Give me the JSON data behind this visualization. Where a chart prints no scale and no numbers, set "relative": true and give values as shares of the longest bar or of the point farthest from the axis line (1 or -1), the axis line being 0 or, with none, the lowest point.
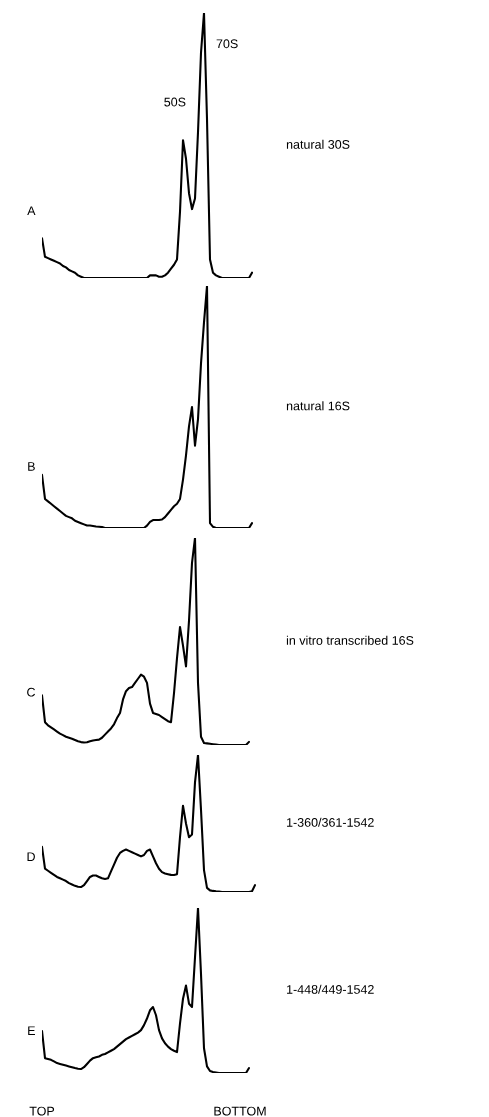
{
  "chart_data": [
    {
      "type": "line",
      "title": "A",
      "relative": true,
      "tick_labels": false,
      "annotations": [
        "70S",
        "50S"
      ],
      "categories": [
        null,
        null,
        null,
        null,
        null,
        null,
        null,
        null,
        null,
        null,
        null,
        null,
        null,
        null,
        null,
        null,
        null,
        null,
        null,
        null,
        null,
        null,
        null,
        null,
        null,
        null,
        null,
        null,
        null,
        null,
        null,
        null,
        null,
        null,
        null,
        null,
        null,
        null,
        null,
        null,
        null,
        null,
        null,
        null,
        null,
        null,
        null,
        null,
        null,
        null,
        null,
        null,
        null,
        null,
        null,
        null,
        null,
        null,
        null,
        null,
        null,
        null,
        null,
        null,
        null,
        null,
        null,
        null,
        null,
        null,
        null,
        null,
        null
      ],
      "series": [
        {
          "name": "natural 30S",
          "color": "#000000",
          "values": [
            0.15,
            0.08,
            0.075,
            0.07,
            0.065,
            0.06,
            0.055,
            0.045,
            0.04,
            0.03,
            0.025,
            0.02,
            0.01,
            0.005,
            0,
            0,
            0,
            0,
            0,
            0,
            0,
            0,
            0,
            0,
            0,
            0,
            0,
            0,
            0,
            0,
            0,
            0,
            0,
            0,
            0,
            0,
            0.01,
            0.01,
            0.01,
            0.005,
            0.005,
            0.01,
            0.02,
            0.035,
            0.05,
            0.07,
            0.25,
            0.52,
            0.45,
            0.32,
            0.26,
            0.3,
            0.55,
            0.85,
            1,
            0.6,
            0.07,
            0.02,
            0.01,
            0.005,
            0,
            0,
            0,
            0,
            0,
            0,
            0,
            0,
            0,
            0,
            0.02,
            null,
            null
          ]
        }
      ]
    },
    {
      "type": "line",
      "title": "B",
      "relative": true,
      "tick_labels": false,
      "categories": [
        null,
        null,
        null,
        null,
        null,
        null,
        null,
        null,
        null,
        null,
        null,
        null,
        null,
        null,
        null,
        null,
        null,
        null,
        null,
        null,
        null,
        null,
        null,
        null,
        null,
        null,
        null,
        null,
        null,
        null,
        null,
        null,
        null,
        null,
        null,
        null,
        null,
        null,
        null,
        null,
        null,
        null,
        null,
        null,
        null,
        null,
        null,
        null,
        null,
        null,
        null,
        null,
        null,
        null,
        null,
        null,
        null,
        null,
        null,
        null,
        null,
        null,
        null,
        null,
        null,
        null,
        null,
        null,
        null,
        null,
        null,
        null,
        null
      ],
      "series": [
        {
          "name": "natural 16S",
          "color": "#000000",
          "values": [
            0.22,
            0.12,
            0.11,
            0.1,
            0.09,
            0.08,
            0.07,
            0.06,
            0.05,
            0.045,
            0.04,
            0.03,
            0.025,
            0.02,
            0.015,
            0.01,
            0.01,
            0.008,
            0.006,
            0.005,
            0.004,
            0,
            0,
            0,
            0,
            0,
            0,
            0,
            0,
            0,
            0,
            0,
            0,
            0,
            0,
            0.01,
            0.025,
            0.033,
            0.033,
            0.033,
            0.035,
            0.045,
            0.06,
            0.075,
            0.09,
            0.1,
            0.12,
            0.2,
            0.3,
            0.42,
            0.5,
            0.34,
            0.45,
            0.68,
            0.85,
            1,
            0.02,
            0.005,
            0,
            0,
            0,
            0,
            0,
            0,
            0,
            0,
            0,
            0,
            0,
            0,
            0.02,
            null,
            null
          ]
        }
      ]
    },
    {
      "type": "line",
      "title": "C",
      "relative": true,
      "tick_labels": false,
      "categories": [
        null,
        null,
        null,
        null,
        null,
        null,
        null,
        null,
        null,
        null,
        null,
        null,
        null,
        null,
        null,
        null,
        null,
        null,
        null,
        null,
        null,
        null,
        null,
        null,
        null,
        null,
        null,
        null,
        null,
        null,
        null,
        null,
        null,
        null,
        null,
        null,
        null,
        null,
        null,
        null,
        null,
        null,
        null,
        null,
        null,
        null,
        null,
        null,
        null,
        null,
        null,
        null,
        null,
        null,
        null,
        null,
        null,
        null,
        null,
        null,
        null,
        null,
        null,
        null,
        null,
        null,
        null,
        null,
        null,
        null,
        null,
        null,
        null
      ],
      "series": [
        {
          "name": "in vitro transcribed 16S",
          "color": "#000000",
          "values": [
            0.24,
            0.11,
            0.095,
            0.085,
            0.075,
            0.065,
            0.055,
            0.048,
            0.04,
            0.035,
            0.03,
            0.024,
            0.018,
            0.014,
            0.012,
            0.013,
            0.018,
            0.022,
            0.024,
            0.026,
            0.035,
            0.05,
            0.065,
            0.08,
            0.1,
            0.13,
            0.155,
            0.22,
            0.26,
            0.275,
            0.28,
            0.3,
            0.32,
            0.34,
            0.33,
            0.3,
            0.2,
            0.155,
            0.15,
            0.145,
            0.135,
            0.125,
            0.115,
            0.11,
            0.25,
            0.42,
            0.57,
            0.48,
            0.38,
            0.6,
            0.88,
            1,
            0.3,
            0.04,
            0.01,
            0.008,
            0.006,
            0.004,
            0.002,
            0,
            0,
            0,
            0,
            0,
            0,
            0,
            0,
            0,
            0,
            0.015,
            null,
            null,
            null
          ]
        }
      ]
    },
    {
      "type": "line",
      "title": "D",
      "relative": true,
      "tick_labels": false,
      "categories": [
        null,
        null,
        null,
        null,
        null,
        null,
        null,
        null,
        null,
        null,
        null,
        null,
        null,
        null,
        null,
        null,
        null,
        null,
        null,
        null,
        null,
        null,
        null,
        null,
        null,
        null,
        null,
        null,
        null,
        null,
        null,
        null,
        null,
        null,
        null,
        null,
        null,
        null,
        null,
        null,
        null,
        null,
        null,
        null,
        null,
        null,
        null,
        null,
        null,
        null,
        null,
        null,
        null,
        null,
        null,
        null,
        null,
        null,
        null,
        null,
        null,
        null,
        null,
        null,
        null,
        null,
        null,
        null,
        null,
        null,
        null,
        null,
        null
      ],
      "series": [
        {
          "name": "1-360/361-1542",
          "color": "#000000",
          "values": [
            0.33,
            0.17,
            0.155,
            0.14,
            0.125,
            0.11,
            0.1,
            0.09,
            0.08,
            0.065,
            0.055,
            0.045,
            0.038,
            0.036,
            0.05,
            0.08,
            0.11,
            0.12,
            0.12,
            0.11,
            0.1,
            0.095,
            0.1,
            0.15,
            0.2,
            0.25,
            0.285,
            0.3,
            0.31,
            0.3,
            0.29,
            0.28,
            0.27,
            0.26,
            0.27,
            0.3,
            0.31,
            0.26,
            0.21,
            0.17,
            0.145,
            0.135,
            0.13,
            0.125,
            0.124,
            0.13,
            0.4,
            0.63,
            0.5,
            0.4,
            0.42,
            0.8,
            1,
            0.6,
            0.16,
            0.03,
            0.012,
            0.008,
            0.005,
            0.003,
            0,
            0,
            0,
            0,
            0,
            0,
            0,
            0,
            0,
            0,
            0.005,
            0.05,
            null
          ]
        }
      ]
    },
    {
      "type": "line",
      "title": "E",
      "relative": true,
      "tick_labels": "x",
      "categories": [
        "TOP",
        null,
        null,
        null,
        null,
        null,
        null,
        null,
        null,
        null,
        null,
        null,
        null,
        null,
        null,
        null,
        null,
        null,
        null,
        null,
        null,
        null,
        null,
        null,
        null,
        null,
        null,
        null,
        null,
        null,
        null,
        null,
        null,
        null,
        null,
        null,
        null,
        null,
        null,
        null,
        null,
        null,
        null,
        null,
        null,
        null,
        null,
        null,
        null,
        null,
        null,
        null,
        null,
        null,
        null,
        null,
        null,
        null,
        null,
        null,
        null,
        null,
        null,
        null,
        null,
        null,
        "BOTTOM",
        null,
        null,
        null,
        null,
        null,
        null
      ],
      "series": [
        {
          "name": "1-448/449-1542",
          "color": "#000000",
          "values": [
            0.255,
            0.09,
            0.085,
            0.08,
            0.07,
            0.06,
            0.055,
            0.05,
            0.045,
            0.04,
            0.035,
            0.03,
            0.026,
            0.024,
            0.035,
            0.055,
            0.075,
            0.09,
            0.095,
            0.1,
            0.11,
            0.115,
            0.125,
            0.135,
            0.145,
            0.16,
            0.175,
            0.19,
            0.205,
            0.215,
            0.225,
            0.235,
            0.245,
            0.26,
            0.29,
            0.33,
            0.38,
            0.4,
            0.35,
            0.26,
            0.21,
            0.18,
            0.16,
            0.145,
            0.135,
            0.127,
            0.3,
            0.45,
            0.53,
            0.42,
            0.4,
            0.7,
            1,
            0.6,
            0.15,
            0.04,
            0.012,
            0.006,
            0.003,
            0,
            0,
            0,
            0,
            0,
            0,
            0,
            0,
            0,
            0,
            0.03,
            null,
            null,
            null
          ]
        }
      ]
    }
  ]
}
